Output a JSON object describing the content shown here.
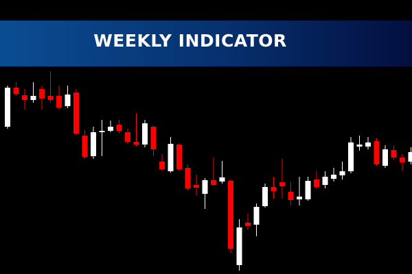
{
  "chart_data": {
    "type": "candlestick",
    "title": "WEEKLY INDICATOR",
    "up_color": "#ffffff",
    "down_color": "#ff0000",
    "ylim": [
      0,
      300
    ],
    "open": [
      215,
      272,
      261,
      254,
      270,
      260,
      260,
      245,
      265,
      202,
      172,
      207,
      209,
      218,
      207,
      193,
      189,
      215,
      164,
      150,
      189,
      155,
      130,
      117,
      137,
      135,
      136,
      13,
      75,
      72,
      99,
      127,
      134,
      120,
      109,
      109,
      138,
      130,
      139,
      144,
      150,
      186,
      186,
      194,
      158,
      181,
      170,
      164
    ],
    "high": [
      275,
      280,
      270,
      280,
      275,
      296,
      275,
      275,
      270,
      210,
      215,
      225,
      224,
      225,
      212,
      235,
      225,
      217,
      175,
      200,
      191,
      160,
      145,
      140,
      170,
      165,
      138,
      80,
      88,
      103,
      132,
      142,
      168,
      135,
      142,
      142,
      150,
      150,
      155,
      164,
      200,
      202,
      200,
      198,
      188,
      188,
      175,
      185
    ],
    "low": [
      212,
      260,
      240,
      250,
      240,
      250,
      240,
      242,
      203,
      168,
      168,
      172,
      207,
      205,
      190,
      187,
      185,
      172,
      150,
      148,
      150,
      122,
      115,
      95,
      128,
      132,
      30,
      5,
      65,
      55,
      97,
      110,
      110,
      100,
      100,
      107,
      124,
      125,
      135,
      138,
      147,
      180,
      182,
      158,
      155,
      167,
      150,
      160
    ],
    "close": [
      272,
      263,
      254,
      260,
      256,
      254,
      243,
      262,
      205,
      171,
      207,
      209,
      215,
      209,
      193,
      189,
      220,
      182,
      153,
      190,
      153,
      125,
      126,
      137,
      130,
      141,
      37,
      68,
      70,
      98,
      127,
      121,
      128,
      108,
      113,
      136,
      127,
      142,
      145,
      150,
      192,
      189,
      192,
      160,
      182,
      170,
      163,
      178
    ]
  }
}
